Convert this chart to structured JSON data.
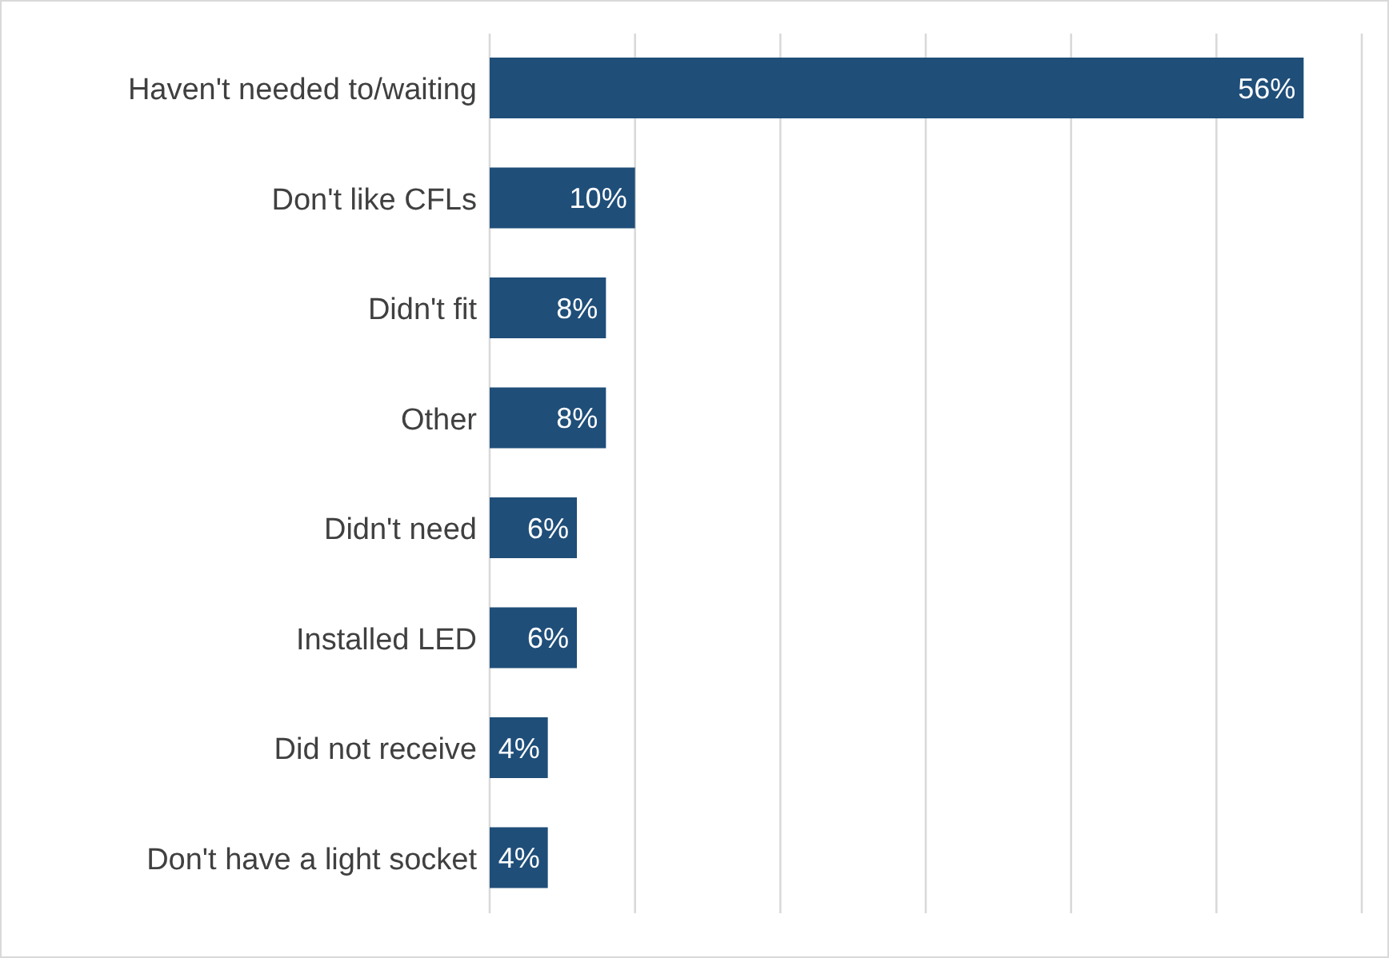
{
  "chart_data": {
    "type": "bar",
    "orientation": "horizontal",
    "categories": [
      "Haven't needed to/waiting",
      "Don't like CFLs",
      "Didn't fit",
      "Other",
      "Didn't need",
      "Installed LED",
      "Did not receive",
      "Don't have a light socket"
    ],
    "values": [
      56,
      10,
      8,
      8,
      6,
      6,
      4,
      4
    ],
    "value_labels": [
      "56%",
      "10%",
      "8%",
      "8%",
      "6%",
      "6%",
      "4%",
      "4%"
    ],
    "color": "#1f4e79",
    "grid": "x",
    "tick_labels": "y"
  }
}
